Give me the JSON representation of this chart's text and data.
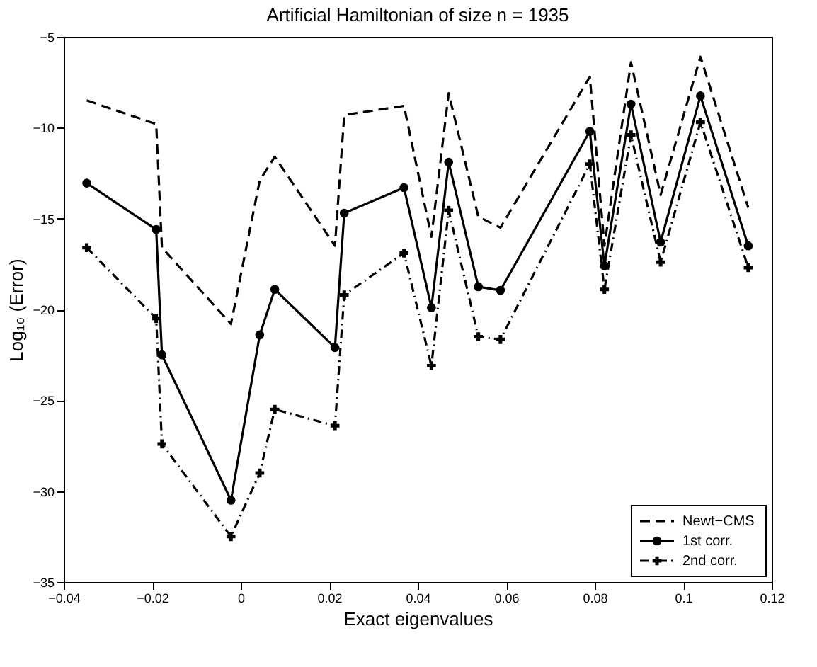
{
  "chart_data": {
    "type": "line",
    "title": "Artificial Hamiltonian of size n = 1935",
    "xlabel": "Exact eigenvalues",
    "ylabel": "Log₁₀ (Error)",
    "x": [
      -0.0348,
      -0.0191,
      -0.0178,
      -0.0022,
      0.0043,
      0.0077,
      0.0213,
      0.0234,
      0.0369,
      0.0431,
      0.047,
      0.0537,
      0.0587,
      0.0789,
      0.0822,
      0.0882,
      0.0949,
      0.1039,
      0.1147
    ],
    "series": [
      {
        "name": "Newt−CMS",
        "color": "#000000",
        "line_style": "dashed",
        "marker": "none",
        "values": [
          -8.5,
          -9.8,
          -16.6,
          -20.8,
          -12.9,
          -11.6,
          -16.5,
          -9.3,
          -8.8,
          -16.0,
          -8.1,
          -14.9,
          -15.5,
          -7.2,
          -16.5,
          -6.4,
          -13.7,
          -6.1,
          -14.4
        ]
      },
      {
        "name": "1st corr.",
        "color": "#000000",
        "line_style": "solid",
        "marker": "circle",
        "values": [
          -13.05,
          -15.6,
          -22.5,
          -30.5,
          -21.4,
          -18.9,
          -22.1,
          -14.7,
          -13.3,
          -19.9,
          -11.9,
          -18.75,
          -18.95,
          -10.2,
          -17.6,
          -8.7,
          -16.3,
          -8.25,
          -16.5
        ]
      },
      {
        "name": "2nd corr.",
        "color": "#000000",
        "line_style": "dotted",
        "marker": "cross",
        "values": [
          -16.6,
          -20.5,
          -27.4,
          -32.5,
          -29.0,
          -25.5,
          -26.4,
          -19.2,
          -16.9,
          -23.1,
          -14.55,
          -21.5,
          -21.65,
          -12.0,
          -18.9,
          -10.4,
          -17.4,
          -9.7,
          -17.7
        ]
      }
    ],
    "xlim": [
      -0.04,
      0.12
    ],
    "xticks": [
      -0.04,
      -0.02,
      0,
      0.02,
      0.04,
      0.06,
      0.08,
      0.1,
      0.12
    ],
    "ylim": [
      -35,
      -5
    ],
    "yticks": [
      -35,
      -30,
      -25,
      -20,
      -15,
      -10,
      -5
    ],
    "grid": false,
    "legend": "bottom right"
  }
}
